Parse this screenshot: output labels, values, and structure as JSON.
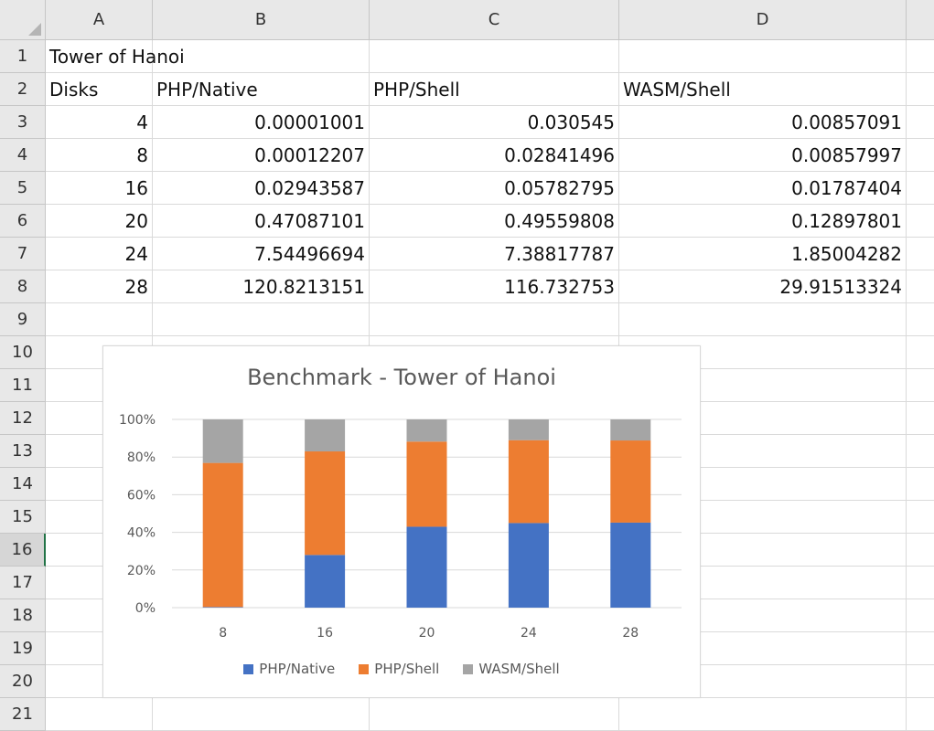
{
  "sheet": {
    "columns": [
      "A",
      "B",
      "C",
      "D"
    ],
    "rows": [
      "1",
      "2",
      "3",
      "4",
      "5",
      "6",
      "7",
      "8",
      "9",
      "10",
      "11",
      "12",
      "13",
      "14",
      "15",
      "16",
      "17",
      "18",
      "19",
      "20",
      "21"
    ],
    "active_row": "16",
    "cells": {
      "A1": "Tower of Hanoi",
      "A2": "Disks",
      "B2": "PHP/Native",
      "C2": "PHP/Shell",
      "D2": "WASM/Shell",
      "A3": "4",
      "B3": "0.00001001",
      "C3": "0.030545",
      "D3": "0.00857091",
      "A4": "8",
      "B4": "0.00012207",
      "C4": "0.02841496",
      "D4": "0.00857997",
      "A5": "16",
      "B5": "0.02943587",
      "C5": "0.05782795",
      "D5": "0.01787404",
      "A6": "20",
      "B6": "0.47087101",
      "C6": "0.49559808",
      "D6": "0.12897801",
      "A7": "24",
      "B7": "7.54496694",
      "C7": "7.38817787",
      "D7": "1.85004282",
      "A8": "28",
      "B8": "120.8213151",
      "C8": "116.732753",
      "D8": "29.91513324"
    }
  },
  "chart_data": {
    "type": "bar",
    "stacked": "percent",
    "title": "Benchmark - Tower of Hanoi",
    "categories": [
      "8",
      "16",
      "20",
      "24",
      "28"
    ],
    "series": [
      {
        "name": "PHP/Native",
        "color": "#4472c4",
        "values": [
          0.00012207,
          0.02943587,
          0.47087101,
          7.54496694,
          120.8213151
        ]
      },
      {
        "name": "PHP/Shell",
        "color": "#ed7d31",
        "values": [
          0.02841496,
          0.05782795,
          0.49559808,
          7.38817787,
          116.732753
        ]
      },
      {
        "name": "WASM/Shell",
        "color": "#a5a5a5",
        "values": [
          0.00857997,
          0.01787404,
          0.12897801,
          1.85004282,
          29.91513324
        ]
      }
    ],
    "y_ticks": [
      "0%",
      "20%",
      "40%",
      "60%",
      "80%",
      "100%"
    ],
    "ylim": [
      0,
      100
    ],
    "grid": true,
    "legend": "bottom"
  }
}
